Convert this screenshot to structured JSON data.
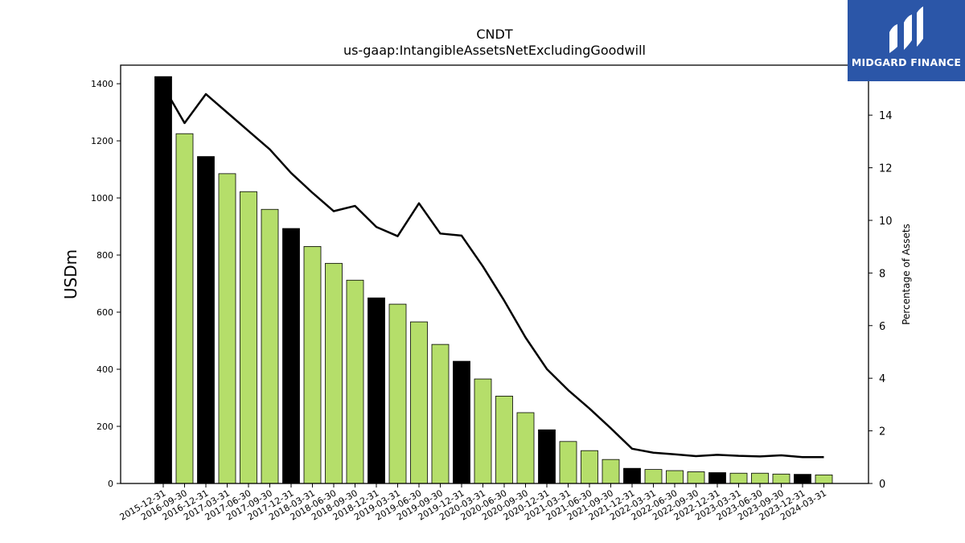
{
  "chart_data": {
    "type": "bar",
    "title": "CNDT",
    "subtitle": "us-gaap:IntangibleAssetsNetExcludingGoodwill",
    "ylabel": "USDm",
    "ylabel_right": "Percentage of Assets",
    "ylim": [
      0,
      1465
    ],
    "ylim_right": [
      0,
      15.9
    ],
    "yticks": [
      0,
      200,
      400,
      600,
      800,
      1000,
      1200,
      1400
    ],
    "yticks_right": [
      0,
      2,
      4,
      6,
      8,
      10,
      12,
      14
    ],
    "grid": false,
    "categories": [
      "2015-12-31",
      "2016-09-30",
      "2016-12-31",
      "2017-03-31",
      "2017-06-30",
      "2017-09-30",
      "2017-12-31",
      "2018-03-31",
      "2018-06-30",
      "2018-09-30",
      "2018-12-31",
      "2019-03-31",
      "2019-06-30",
      "2019-09-30",
      "2019-12-31",
      "2020-03-31",
      "2020-06-30",
      "2020-09-30",
      "2020-12-31",
      "2021-03-31",
      "2021-06-30",
      "2021-09-30",
      "2021-12-31",
      "2022-03-31",
      "2022-06-30",
      "2022-09-30",
      "2022-12-31",
      "2023-03-31",
      "2023-06-30",
      "2023-09-30",
      "2023-12-31",
      "2024-03-31"
    ],
    "series": [
      {
        "name": "",
        "kind": "bar",
        "axis": "left",
        "values": [
          1425,
          1225,
          1145,
          1085,
          1022,
          960,
          893,
          830,
          771,
          712,
          650,
          628,
          566,
          487,
          428,
          366,
          306,
          248,
          188,
          147,
          115,
          84,
          53,
          49,
          45,
          41,
          38,
          36,
          36,
          33,
          32,
          30
        ]
      },
      {
        "name": "",
        "kind": "line",
        "axis": "right",
        "values": [
          15.1,
          13.7,
          14.8,
          14.1,
          13.4,
          12.7,
          11.8,
          11.05,
          10.35,
          10.55,
          9.75,
          9.4,
          10.65,
          9.5,
          9.42,
          8.25,
          6.95,
          5.55,
          4.35,
          3.55,
          2.85,
          2.1,
          1.32,
          1.17,
          1.11,
          1.04,
          1.09,
          1.05,
          1.03,
          1.07,
          1.0,
          1.0
        ]
      }
    ],
    "colors": {
      "annual": "#000000",
      "quarterly": "#b5de6a",
      "line": "#000000"
    },
    "annual_indices": [
      0,
      2,
      6,
      10,
      14,
      18,
      22,
      26,
      30
    ]
  },
  "logo": {
    "text": "MIDGARD FINANCE"
  }
}
